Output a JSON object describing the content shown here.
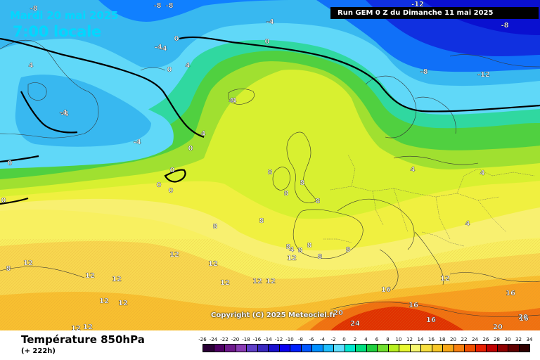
{
  "header": {
    "date_title": "Mardi 20 mai 2025",
    "local_time": "7:00 locale",
    "run_info": "Run GEM 0 Z du Dimanche 11 mai 2025"
  },
  "footer": {
    "parameter_title": "Température 850hPa",
    "lead_time": "(+ 222h)",
    "copyright": "Copyright (C) 2025 Meteociel.fr"
  },
  "legend": {
    "ticks": [
      "-26",
      "-24",
      "-22",
      "-20",
      "-18",
      "-16",
      "-14",
      "-12",
      "-10",
      "-8",
      "-6",
      "-4",
      "-2",
      "0",
      "2",
      "4",
      "6",
      "8",
      "10",
      "12",
      "14",
      "16",
      "18",
      "20",
      "22",
      "24",
      "26",
      "28",
      "30",
      "32",
      "34"
    ],
    "colors": [
      "#2a0036",
      "#4e0064",
      "#6e1a8c",
      "#8a3cb4",
      "#6040c8",
      "#3a28c0",
      "#1a10d0",
      "#0a00f0",
      "#0020ff",
      "#0058ff",
      "#0090ff",
      "#20c0ff",
      "#60e0ff",
      "#00e8d0",
      "#00e080",
      "#20d040",
      "#70e030",
      "#b8f020",
      "#e8f830",
      "#f8f870",
      "#f8e040",
      "#f8c828",
      "#f8a818",
      "#f88010",
      "#f05000",
      "#e82000",
      "#c00000",
      "#900000",
      "#600000",
      "#300000"
    ]
  },
  "map": {
    "isotherm_labels": [
      {
        "text": "-8"
      },
      {
        "text": "-8"
      },
      {
        "text": "-8"
      },
      {
        "text": "-12"
      },
      {
        "text": "-8"
      },
      {
        "text": "-4"
      },
      {
        "text": "-4"
      },
      {
        "text": "0"
      },
      {
        "text": "-4"
      },
      {
        "text": "0"
      },
      {
        "text": "4"
      },
      {
        "text": "0"
      },
      {
        "text": "-8"
      },
      {
        "text": "-12"
      },
      {
        "text": "-4"
      },
      {
        "text": "-4"
      },
      {
        "text": "0"
      },
      {
        "text": "0"
      },
      {
        "text": "0"
      },
      {
        "text": "0"
      },
      {
        "text": "4"
      },
      {
        "text": "4"
      },
      {
        "text": "8"
      },
      {
        "text": "8"
      },
      {
        "text": "8"
      },
      {
        "text": "4"
      },
      {
        "text": "4"
      },
      {
        "text": "4"
      },
      {
        "text": "8"
      },
      {
        "text": "8"
      },
      {
        "text": "12"
      },
      {
        "text": "12"
      },
      {
        "text": "12"
      },
      {
        "text": "12"
      },
      {
        "text": "12"
      },
      {
        "text": "12"
      },
      {
        "text": "12"
      },
      {
        "text": "12"
      },
      {
        "text": "12"
      },
      {
        "text": "12"
      },
      {
        "text": "8"
      },
      {
        "text": "8"
      },
      {
        "text": "8"
      },
      {
        "text": "8"
      },
      {
        "text": "12"
      },
      {
        "text": "16"
      },
      {
        "text": "16"
      },
      {
        "text": "16"
      },
      {
        "text": "16"
      },
      {
        "text": "16"
      },
      {
        "text": "20"
      },
      {
        "text": "24"
      },
      {
        "text": "20"
      },
      {
        "text": "20"
      },
      {
        "text": "12"
      },
      {
        "text": "8"
      },
      {
        "text": "0"
      },
      {
        "text": "4"
      },
      {
        "text": "4"
      },
      {
        "text": "8"
      },
      {
        "text": "12"
      },
      {
        "text": "12"
      },
      {
        "text": "-4"
      },
      {
        "text": "0"
      },
      {
        "text": "4"
      },
      {
        "text": "8"
      }
    ]
  }
}
